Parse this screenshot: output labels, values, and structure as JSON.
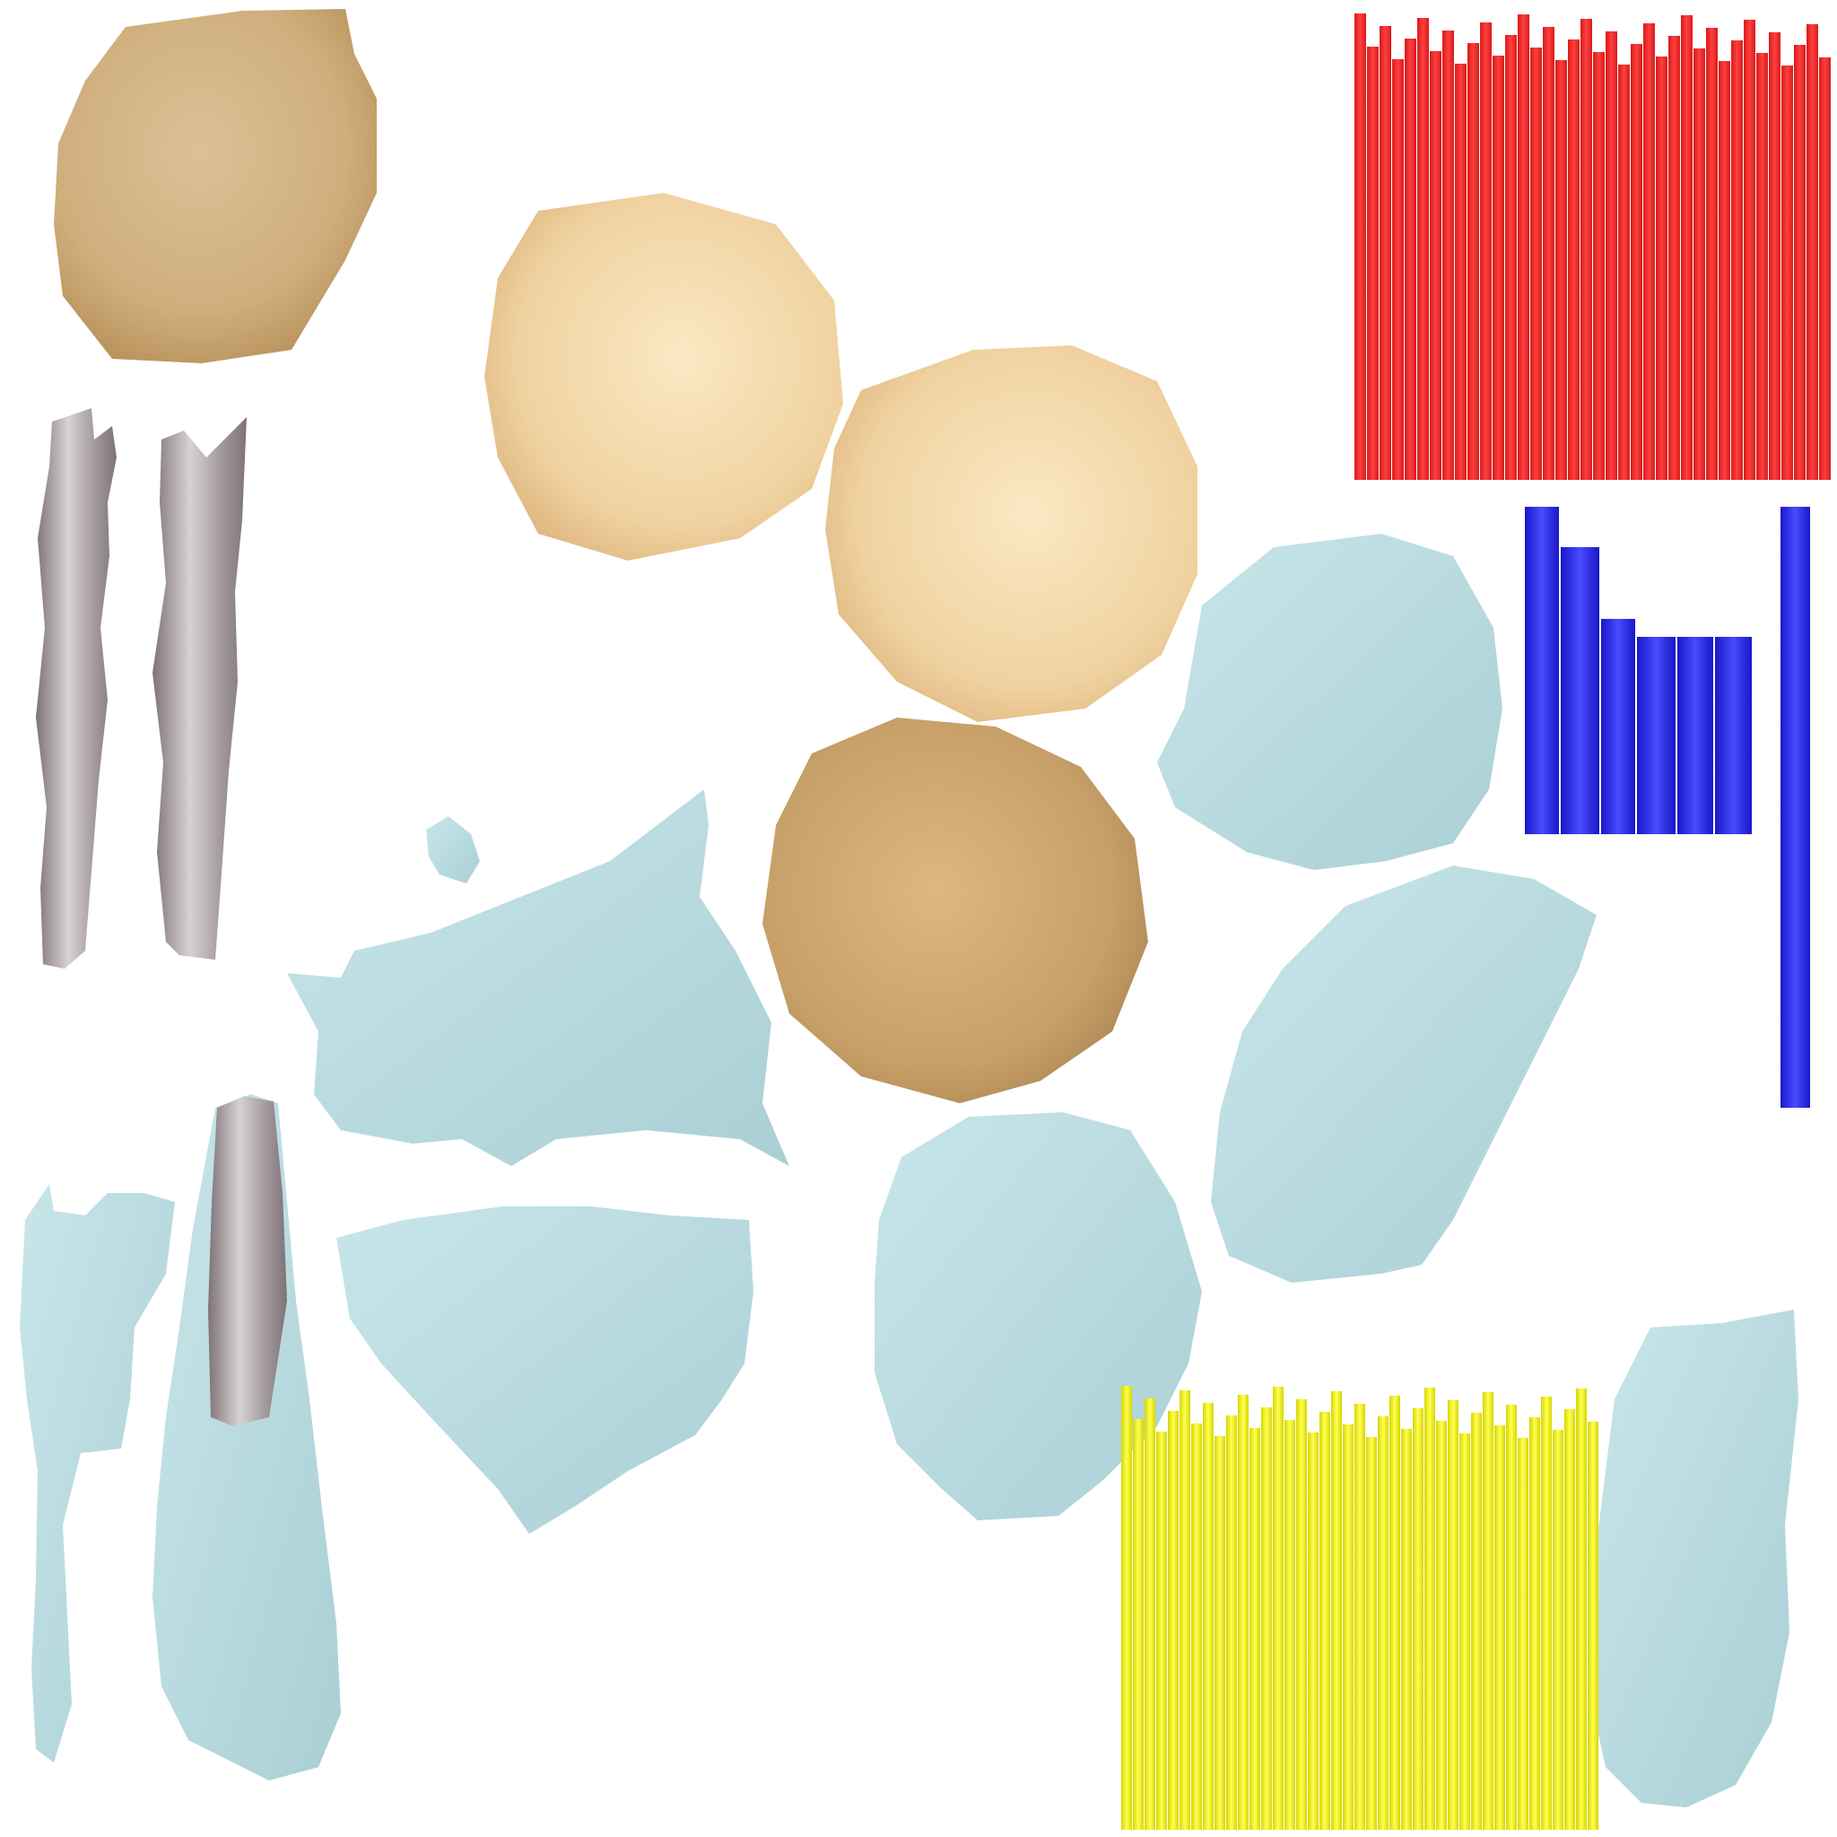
{
  "colors": {
    "background": "#ffffff",
    "skin_light": "#f3d6a6",
    "skin_mid": "#e4bf86",
    "skin_dark": "#c9a06a",
    "cloth_pale_blue": "#bcdfe3",
    "cloth_blue_shade": "#9fc7cd",
    "metal_gray": "#b9b3b6",
    "metal_dark": "#8e8689",
    "red_strips": "#ff2a2a",
    "blue_strips": "#2b2bff",
    "yellow_strips": "#ffff2a"
  },
  "islands": [
    {
      "name": "skin-patch-top-left",
      "material": "skin_mid"
    },
    {
      "name": "skin-patch-center-upper",
      "material": "skin_light"
    },
    {
      "name": "skin-patch-center-right",
      "material": "skin_light"
    },
    {
      "name": "skin-patch-center-lower",
      "material": "skin_dark"
    },
    {
      "name": "metal-strip-left-1",
      "material": "metal_gray"
    },
    {
      "name": "metal-strip-left-2",
      "material": "metal_gray"
    },
    {
      "name": "cloth-big-torso",
      "material": "cloth_pale_blue"
    },
    {
      "name": "cloth-mid-lower",
      "material": "cloth_pale_blue"
    },
    {
      "name": "cloth-left-sleeve",
      "material": "cloth_pale_blue"
    },
    {
      "name": "cloth-left-tube",
      "material": "cloth_pale_blue"
    },
    {
      "name": "cloth-round-center",
      "material": "cloth_pale_blue"
    },
    {
      "name": "cloth-drop-right",
      "material": "cloth_pale_blue"
    },
    {
      "name": "cloth-elongated-right",
      "material": "cloth_pale_blue"
    },
    {
      "name": "cloth-bottom-right",
      "material": "cloth_pale_blue"
    },
    {
      "name": "red-strip-block",
      "material": "red_strips"
    },
    {
      "name": "blue-strip-block",
      "material": "blue_strips"
    },
    {
      "name": "yellow-strip-block",
      "material": "yellow_strips"
    }
  ]
}
